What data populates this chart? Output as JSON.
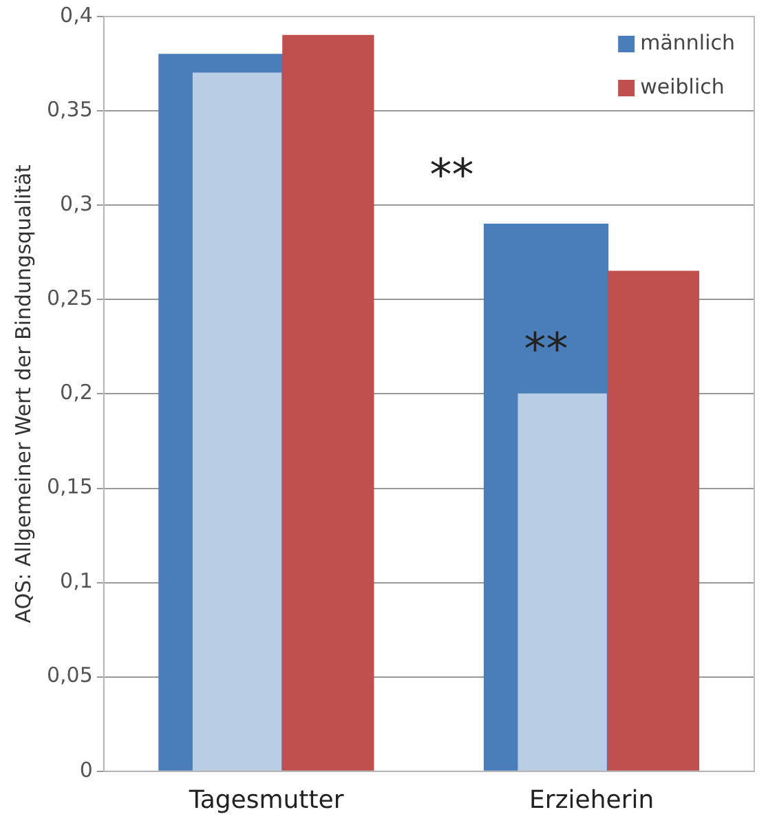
{
  "chart_data": {
    "type": "bar",
    "ylabel": "AQS: Allgemeiner Wert der Bindungsqualität",
    "categories": [
      "Tagesmutter",
      "Erzieherin"
    ],
    "series": [
      {
        "name": "männlich",
        "color": "#4a7ebb",
        "values": [
          0.38,
          0.29
        ]
      },
      {
        "color": "#b9cde5",
        "values": [
          0.37,
          0.2
        ]
      },
      {
        "name": "weiblich",
        "color": "#c0504d",
        "values": [
          0.39,
          0.265
        ]
      }
    ],
    "ylim": [
      0,
      0.4
    ],
    "yticks": [
      0,
      {
        "value": 0.05,
        "label": "0,05"
      },
      {
        "value": 0.1,
        "label": "0,1"
      },
      {
        "value": 0.15,
        "label": "0,15"
      },
      {
        "value": 0.2,
        "label": "0,2"
      },
      {
        "value": 0.25,
        "label": "0,25"
      },
      {
        "value": 0.3,
        "label": "0,3"
      },
      {
        "value": 0.35,
        "label": "0,35"
      },
      {
        "value": 0.4,
        "label": "0,4"
      }
    ],
    "grid": "y",
    "legend": "top right",
    "annotations": [
      "**",
      "**"
    ]
  }
}
